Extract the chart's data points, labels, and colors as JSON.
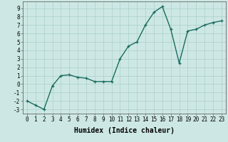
{
  "x": [
    0,
    1,
    2,
    3,
    4,
    5,
    6,
    7,
    8,
    9,
    10,
    11,
    12,
    13,
    14,
    15,
    16,
    17,
    18,
    19,
    20,
    21,
    22,
    23
  ],
  "y": [
    -2.0,
    -2.5,
    -3.0,
    -0.2,
    1.0,
    1.1,
    0.8,
    0.7,
    0.3,
    0.3,
    0.3,
    3.0,
    4.5,
    5.0,
    7.0,
    8.5,
    9.2,
    6.5,
    2.5,
    6.3,
    6.5,
    7.0,
    7.3,
    7.5
  ],
  "line_color": "#1a6b5e",
  "marker": "+",
  "marker_size": 3,
  "marker_lw": 0.9,
  "bg_color": "#cde8e4",
  "grid_color": "#aacfcb",
  "xlabel": "Humidex (Indice chaleur)",
  "xlim": [
    -0.5,
    23.5
  ],
  "ylim": [
    -3.5,
    9.8
  ],
  "yticks": [
    -3,
    -2,
    -1,
    0,
    1,
    2,
    3,
    4,
    5,
    6,
    7,
    8,
    9
  ],
  "xticks": [
    0,
    1,
    2,
    3,
    4,
    5,
    6,
    7,
    8,
    9,
    10,
    11,
    12,
    13,
    14,
    15,
    16,
    17,
    18,
    19,
    20,
    21,
    22,
    23
  ],
  "tick_fontsize": 5.5,
  "xlabel_fontsize": 7.0,
  "linewidth": 1.0
}
